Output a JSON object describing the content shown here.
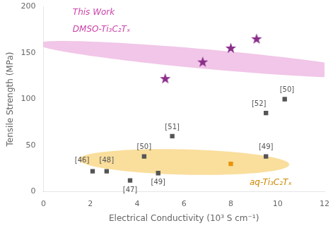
{
  "chart_data": {
    "type": "scatter",
    "xlabel": "Electrical Conductivity (10³ S cm⁻¹)",
    "ylabel": "Tensile Strength (MPa)",
    "xlim": [
      0,
      12
    ],
    "ylim": [
      0,
      200
    ],
    "xticks": [
      0,
      2,
      4,
      6,
      8,
      10,
      12
    ],
    "yticks": [
      0,
      50,
      100,
      150,
      200
    ],
    "grid": false,
    "series": [
      {
        "color": "#555555",
        "marker": "square",
        "x": [
          2.1,
          2.7,
          3.7,
          4.3,
          4.9,
          5.5,
          9.5,
          9.5,
          10.3
        ],
        "values": [
          22,
          22,
          12,
          38,
          20,
          60,
          38,
          85,
          100
        ],
        "labels": [
          "[46]",
          "[48]",
          "[47]",
          "[50]",
          "[49]",
          "[51]",
          "[49]",
          "[52]",
          "[50]"
        ],
        "label_at": [
          [
            1.65,
            30
          ],
          [
            2.7,
            30
          ],
          [
            3.7,
            -2
          ],
          [
            4.3,
            44
          ],
          [
            4.9,
            6
          ],
          [
            5.5,
            66
          ],
          [
            9.5,
            44
          ],
          [
            9.2,
            91
          ],
          [
            10.4,
            106
          ]
        ]
      },
      {
        "color": "#e6950a",
        "marker": "square",
        "x": [
          8.0
        ],
        "values": [
          30
        ]
      },
      {
        "color": "#8b2d8b",
        "marker": "star",
        "x": [
          5.2,
          6.8,
          8.0,
          9.1
        ],
        "values": [
          122,
          140,
          155,
          165
        ]
      }
    ],
    "ellipses": [
      {
        "cx": 7.1,
        "cy": 143,
        "width": 7.5,
        "height": 42,
        "angle": 18,
        "color": "#e8a0d8"
      },
      {
        "cx": 6.0,
        "cy": 32,
        "width": 8.8,
        "height": 28,
        "angle": 4,
        "color": "#f5c85a"
      }
    ],
    "annotations": [
      {
        "text": "This Work",
        "x": 1.25,
        "y": 198,
        "color": "#cc44aa"
      },
      {
        "text": "DMSO-Ti₃C₂Tₓ",
        "x": 1.25,
        "y": 180,
        "color": "#cc44aa"
      },
      {
        "text": "aq-Ti₃C₂Tₓ",
        "x": 8.8,
        "y": 14,
        "color": "#cc8800"
      }
    ]
  }
}
